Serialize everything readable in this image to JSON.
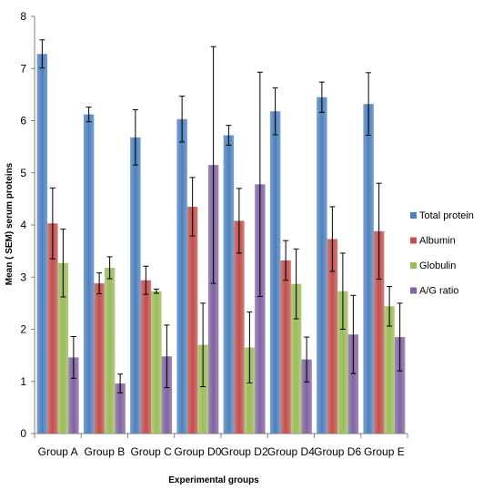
{
  "chart_data": {
    "type": "bar",
    "title": "",
    "xlabel": "Experimental groups",
    "ylabel": "Mean ( SEM) serum proteins",
    "ylim": [
      0,
      8
    ],
    "yticks": [
      0,
      1,
      2,
      3,
      4,
      5,
      6,
      7,
      8
    ],
    "grid": false,
    "legend_position": "right",
    "categories": [
      "Group A",
      "Group B",
      "Group C",
      "Group D0",
      "Group D2",
      "Group D4",
      "Group D6",
      "Group E"
    ],
    "series": [
      {
        "name": "Total protein",
        "color": "#4f81bd",
        "values": [
          7.28,
          6.12,
          5.68,
          6.03,
          5.72,
          6.18,
          6.45,
          6.32
        ],
        "errors": [
          0.27,
          0.14,
          0.53,
          0.44,
          0.19,
          0.45,
          0.29,
          0.6
        ]
      },
      {
        "name": "Albumin",
        "color": "#c0504d",
        "values": [
          4.03,
          2.88,
          2.94,
          4.35,
          4.08,
          3.32,
          3.73,
          3.88
        ],
        "errors": [
          0.68,
          0.2,
          0.27,
          0.56,
          0.62,
          0.38,
          0.62,
          0.92
        ]
      },
      {
        "name": "Globulin",
        "color": "#9bbb59",
        "values": [
          3.27,
          3.18,
          2.73,
          1.7,
          1.65,
          2.87,
          2.73,
          2.44
        ],
        "errors": [
          0.65,
          0.21,
          0.04,
          0.8,
          0.68,
          0.67,
          0.73,
          0.38
        ]
      },
      {
        "name": "A/G ratio",
        "color": "#8064a2",
        "values": [
          1.46,
          0.96,
          1.48,
          5.15,
          4.78,
          1.42,
          1.9,
          1.85
        ],
        "errors": [
          0.4,
          0.18,
          0.6,
          2.27,
          2.15,
          0.43,
          0.75,
          0.65
        ]
      }
    ]
  }
}
